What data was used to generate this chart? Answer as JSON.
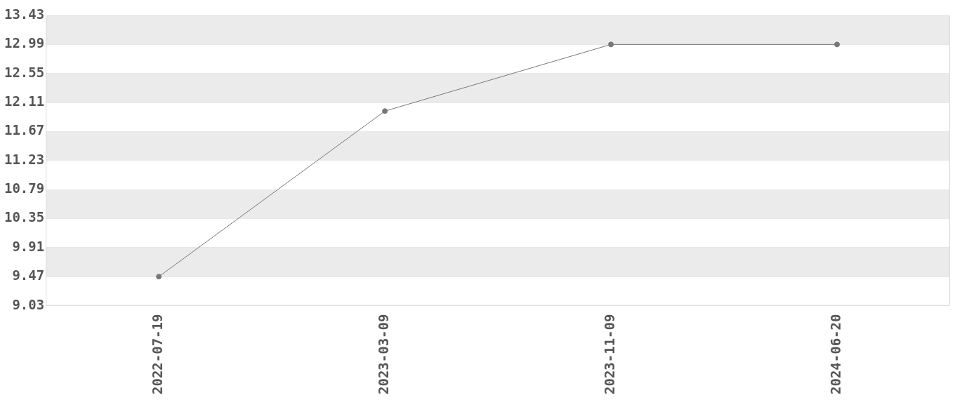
{
  "chart_data": {
    "type": "line",
    "categories": [
      "2022-07-19",
      "2023-03-09",
      "2023-11-09",
      "2024-06-20"
    ],
    "series": [
      {
        "color": "#777777",
        "values": [
          9.47,
          11.98,
          12.99,
          12.99
        ]
      }
    ],
    "ylim": [
      9.03,
      13.43
    ],
    "yticks": [
      9.03,
      9.47,
      9.91,
      10.35,
      10.79,
      11.23,
      11.67,
      12.11,
      12.55,
      12.99,
      13.43
    ],
    "grid": "y",
    "legend": false,
    "marker": "circle",
    "line_style": "solid"
  }
}
